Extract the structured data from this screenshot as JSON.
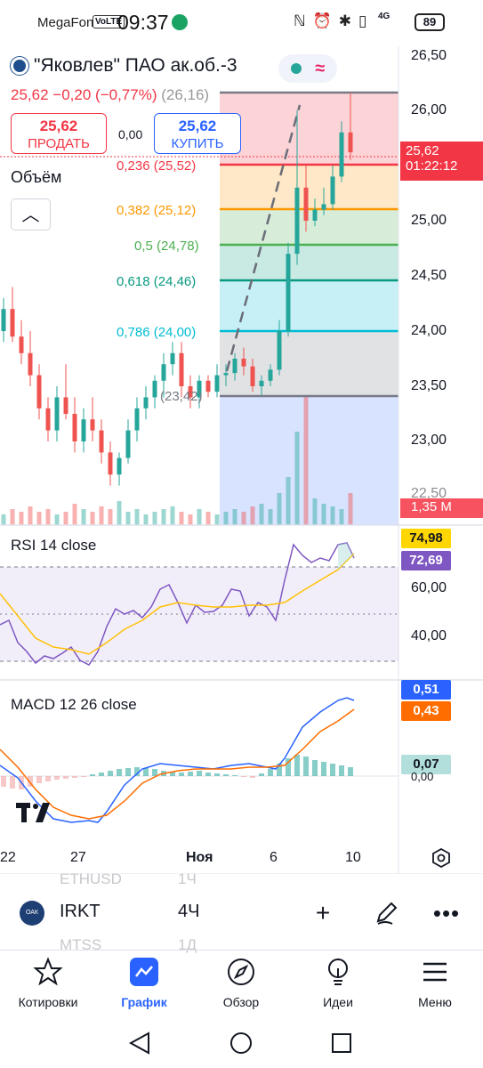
{
  "status_bar": {
    "carrier": "MegaFon",
    "volte": "VoLTE",
    "time": "09:37",
    "network": "4G",
    "battery": "89"
  },
  "header": {
    "title": "\"Яковлев\" ПАО ак.об.-3",
    "last_price": "25,62",
    "change": "−0,20",
    "change_pct": "(−0,77%)",
    "overlay_value": "(26,16)"
  },
  "trade": {
    "sell_price": "25,62",
    "sell_label": "ПРОДАТЬ",
    "spread": "0,00",
    "buy_price": "25,62",
    "buy_label": "КУПИТЬ"
  },
  "volume_label": "Объём",
  "fibonacci": [
    {
      "ratio": "0,236",
      "price": "(25,52)",
      "color": "#f23645"
    },
    {
      "ratio": "0,382",
      "price": "(25,12)",
      "color": "#ff9800"
    },
    {
      "ratio": "0,5",
      "price": "(24,78)",
      "color": "#4caf50"
    },
    {
      "ratio": "0,618",
      "price": "(24,46)",
      "color": "#089981"
    },
    {
      "ratio": "0,786",
      "price": "(24,00)",
      "color": "#00bcd4"
    },
    {
      "ratio": "",
      "price": "(23,42)",
      "color": "#787b86"
    }
  ],
  "price_axis": [
    "26,50",
    "26,00",
    "25,50",
    "25,00",
    "24,50",
    "24,00",
    "23,50",
    "23,00",
    "22,50"
  ],
  "current_price_box": {
    "price": "25,62",
    "countdown": "01:22:12",
    "color": "#f23645"
  },
  "volume_box": {
    "value": "1,35 M",
    "color": "#f7525f"
  },
  "rsi": {
    "label": "RSI 14 close",
    "value": "74,98",
    "ma_value": "72,69",
    "value_color": "#ffd600",
    "ma_color": "#7e57c2",
    "ticks": [
      "60,00",
      "40,00"
    ]
  },
  "macd": {
    "label": "MACD 12 26 close",
    "macd_value": "0,51",
    "signal_value": "0,43",
    "hist_value": "0,07",
    "zero_tick": "0,00",
    "macd_color": "#2962ff",
    "signal_color": "#ff6d00",
    "hist_color": "#b2dfdb"
  },
  "x_axis": [
    "22",
    "27",
    "Ноя",
    "6",
    "10"
  ],
  "watchlist_ghost": {
    "prev_symbol": "ETHUSD",
    "prev_interval": "1Ч",
    "next_symbol": "MTSS",
    "next_interval": "1Д"
  },
  "symbol_bar": {
    "symbol": "IRKT",
    "interval": "4Ч",
    "logo_text": "ОАК"
  },
  "bottom_nav": [
    {
      "label": "Котировки",
      "icon": "star-icon"
    },
    {
      "label": "График",
      "icon": "chart-icon"
    },
    {
      "label": "Обзор",
      "icon": "compass-icon"
    },
    {
      "label": "Идеи",
      "icon": "lightbulb-icon"
    },
    {
      "label": "Меню",
      "icon": "menu-icon"
    }
  ]
}
